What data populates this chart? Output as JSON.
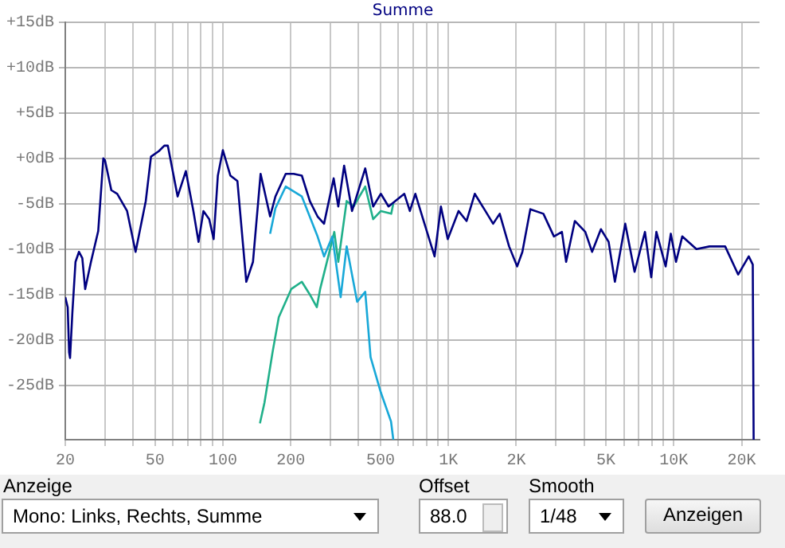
{
  "chart_data": {
    "type": "line",
    "legend": "top",
    "grid": true,
    "log": "x",
    "marker": "none",
    "line_style": "solid",
    "xlim": [
      20,
      24000
    ],
    "xticks": [
      20,
      {
        "value": 30,
        "label": null
      },
      {
        "value": 40,
        "label": null
      },
      50,
      {
        "value": 60,
        "label": null
      },
      {
        "value": 70,
        "label": null
      },
      {
        "value": 80,
        "label": null
      },
      {
        "value": 90,
        "label": null
      },
      100,
      200,
      {
        "value": 300,
        "label": null
      },
      {
        "value": 400,
        "label": null
      },
      500,
      {
        "value": 600,
        "label": null
      },
      {
        "value": 700,
        "label": null
      },
      {
        "value": 800,
        "label": null
      },
      {
        "value": 900,
        "label": null
      },
      {
        "value": 1000,
        "label": "1K"
      },
      {
        "value": 2000,
        "label": "2K"
      },
      {
        "value": 3000,
        "label": null
      },
      {
        "value": 4000,
        "label": null
      },
      {
        "value": 5000,
        "label": "5K"
      },
      {
        "value": 6000,
        "label": null
      },
      {
        "value": 7000,
        "label": null
      },
      {
        "value": 8000,
        "label": null
      },
      {
        "value": 9000,
        "label": null
      },
      {
        "value": 10000,
        "label": "10K"
      },
      {
        "value": 20000,
        "label": "20K"
      }
    ],
    "ylim": [
      -31,
      15
    ],
    "yticks": [
      {
        "value": -25,
        "label": "-25dB"
      },
      {
        "value": -20,
        "label": "-20dB"
      },
      {
        "value": -15,
        "label": "-15dB"
      },
      {
        "value": -10,
        "label": "-10dB"
      },
      {
        "value": -5,
        "label": "-5dB"
      },
      {
        "value": 0,
        "label": "+0dB"
      },
      {
        "value": 5,
        "label": "+5dB"
      },
      {
        "value": 10,
        "label": "+10dB"
      },
      {
        "value": 15,
        "label": "+15dB"
      }
    ],
    "series": [
      {
        "name": "Summe",
        "color": "#000080",
        "x": [
          20,
          20.5,
          20.8,
          21,
          21.5,
          22.2,
          23,
          23.8,
          24.5,
          26,
          28,
          29.5,
          30,
          32,
          34,
          37.6,
          41,
          45.5,
          48,
          52,
          55,
          57,
          63,
          68.5,
          74,
          78,
          82,
          87,
          91,
          95,
          100,
          108,
          116,
          127,
          136,
          147,
          162,
          171,
          190,
          206,
          224,
          243,
          263,
          281,
          310,
          325,
          345,
          374,
          428,
          464,
          502,
          543,
          638,
          675,
          714,
          777,
          869,
          927,
          994,
          1110,
          1205,
          1310,
          1460,
          1580,
          1690,
          1860,
          2020,
          2130,
          2310,
          2640,
          2940,
          3190,
          3330,
          3640,
          4050,
          4340,
          4750,
          5140,
          5480,
          6090,
          6700,
          7450,
          7940,
          8370,
          9200,
          9700,
          10230,
          10900,
          12600,
          14400,
          16900,
          19300,
          21500,
          22400,
          22600
        ],
        "values": [
          -15.3,
          -16.4,
          -21.4,
          -22,
          -17,
          -11.4,
          -10.3,
          -11,
          -14.4,
          -11.4,
          -8,
          0,
          -0.2,
          -3.5,
          -3.9,
          -5.8,
          -10.3,
          -4.7,
          0.2,
          0.8,
          1.4,
          1.4,
          -4.2,
          -1.4,
          -5.8,
          -9.2,
          -5.8,
          -6.7,
          -8.9,
          -1.9,
          0.9,
          -1.9,
          -2.5,
          -13.6,
          -11.4,
          -1.7,
          -6.4,
          -4.2,
          -1.7,
          -1.7,
          -1.9,
          -4.7,
          -6.4,
          -7.2,
          -2.2,
          -5.3,
          -0.8,
          -5.8,
          -1.1,
          -5.3,
          -3.9,
          -5.3,
          -3.9,
          -5.8,
          -3.9,
          -6.9,
          -10.8,
          -5.3,
          -8.9,
          -5.8,
          -6.9,
          -3.9,
          -5.8,
          -7.2,
          -6.1,
          -9.7,
          -11.9,
          -10.3,
          -5.6,
          -6.1,
          -8.6,
          -8.1,
          -11.4,
          -6.9,
          -8.1,
          -10.3,
          -7.8,
          -9.2,
          -13.6,
          -7.2,
          -12.5,
          -8.1,
          -13.1,
          -8.1,
          -11.9,
          -8.3,
          -11.4,
          -8.6,
          -10,
          -9.7,
          -9.7,
          -12.8,
          -10.8,
          -11.7,
          -31
        ]
      },
      {
        "color": "#18a8d8",
        "x": [
          162,
          171,
          190,
          224,
          263,
          281,
          306,
          333,
          354,
          394,
          428,
          452,
          502,
          557,
          570
        ],
        "values": [
          -8.3,
          -5.5,
          -3.1,
          -4.2,
          -8.6,
          -10.8,
          -8.6,
          -15.3,
          -9.7,
          -15.8,
          -14.7,
          -21.9,
          -25.8,
          -29,
          -31
        ]
      },
      {
        "color": "#20b08a",
        "x": [
          146,
          153,
          166,
          177,
          201,
          224,
          243,
          261,
          270,
          301,
          312,
          325,
          354,
          380,
          428,
          464,
          502,
          558,
          570
        ],
        "values": [
          -29.2,
          -26.9,
          -21.4,
          -17.5,
          -14.4,
          -13.6,
          -15,
          -16.4,
          -14.4,
          -9.7,
          -8.1,
          -11.4,
          -4.7,
          -5.3,
          -3.1,
          -6.7,
          -5.8,
          -6.1,
          -5
        ]
      }
    ],
    "annotations": [
      "Anzeige",
      "Mono: Links, Rechts, Summe",
      "Offset",
      "88.0",
      "Smooth",
      "1/48",
      "Anzeigen"
    ]
  }
}
